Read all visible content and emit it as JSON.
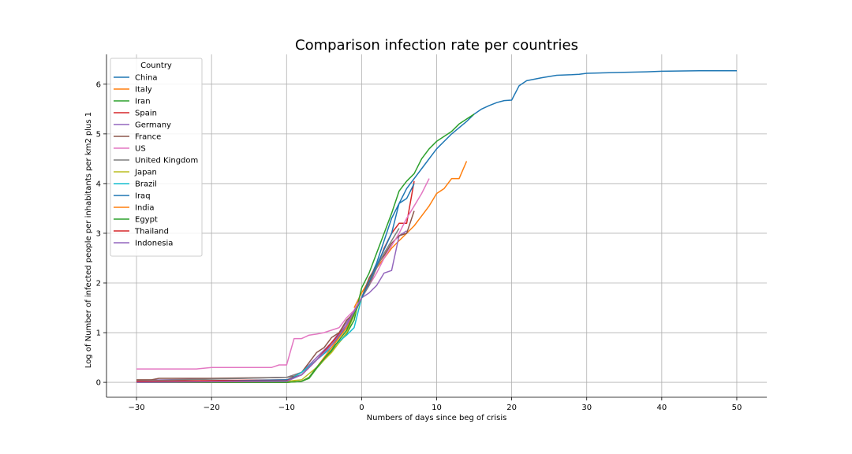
{
  "chart_data": {
    "type": "line",
    "title": "Comparison infection rate per countries",
    "xlabel": "Numbers of days since beg of crisis",
    "ylabel": "Log of Number of infected people per inhabitants per km2 plus 1",
    "xlim": [
      -34,
      54
    ],
    "ylim": [
      -0.3,
      6.6
    ],
    "xticks": [
      -30,
      -20,
      -10,
      0,
      10,
      20,
      30,
      40,
      50
    ],
    "yticks": [
      0,
      1,
      2,
      3,
      4,
      5,
      6
    ],
    "grid": true,
    "legend": {
      "title": "Country",
      "placement": "upper-left"
    },
    "series": [
      {
        "name": "China",
        "color": "#1f77b4",
        "x": [
          0,
          2,
          4,
          6,
          8,
          10,
          12,
          14,
          15,
          16,
          17,
          18,
          19,
          20,
          21,
          22,
          24,
          26,
          28,
          29,
          30,
          33,
          35,
          38,
          40,
          45,
          50
        ],
        "y": [
          1.7,
          2.4,
          3.3,
          3.9,
          4.3,
          4.7,
          5.0,
          5.25,
          5.4,
          5.5,
          5.57,
          5.63,
          5.67,
          5.68,
          5.97,
          6.07,
          6.13,
          6.18,
          6.19,
          6.2,
          6.22,
          6.23,
          6.24,
          6.25,
          6.26,
          6.27,
          6.27
        ]
      },
      {
        "name": "Italy",
        "color": "#ff7f0e",
        "x": [
          -1,
          0,
          1,
          2,
          3,
          4,
          5,
          6,
          7,
          8,
          9,
          10,
          11,
          12,
          13,
          14
        ],
        "y": [
          1.5,
          1.8,
          2.05,
          2.3,
          2.5,
          2.7,
          2.85,
          3.0,
          3.15,
          3.35,
          3.55,
          3.8,
          3.9,
          4.1,
          4.1,
          4.45
        ]
      },
      {
        "name": "Iran",
        "color": "#2ca02c",
        "x": [
          -30,
          -10,
          -8,
          -7,
          -6,
          -5,
          -4,
          -3,
          -2,
          -1,
          0,
          1,
          2,
          3,
          4,
          5,
          6,
          7,
          8,
          9,
          10,
          11,
          12,
          13,
          14,
          15
        ],
        "y": [
          0.0,
          0.0,
          0.02,
          0.08,
          0.28,
          0.45,
          0.62,
          0.8,
          0.98,
          1.25,
          1.9,
          2.2,
          2.6,
          3.0,
          3.4,
          3.85,
          4.05,
          4.2,
          4.5,
          4.7,
          4.85,
          4.95,
          5.05,
          5.2,
          5.3,
          5.4
        ]
      },
      {
        "name": "Spain",
        "color": "#d62728",
        "x": [
          -30,
          -10,
          -8,
          -6,
          -4,
          -2,
          0,
          1,
          2,
          3,
          4,
          5,
          6,
          7
        ],
        "y": [
          0.02,
          0.05,
          0.15,
          0.45,
          0.75,
          1.1,
          1.7,
          2.0,
          2.3,
          2.7,
          3.0,
          3.2,
          3.2,
          4.05
        ]
      },
      {
        "name": "Germany",
        "color": "#9467bd",
        "x": [
          -30,
          -10,
          -8,
          -6,
          -4,
          -2,
          0,
          1,
          2,
          3,
          4,
          5,
          6
        ],
        "y": [
          0.04,
          0.1,
          0.2,
          0.5,
          0.8,
          1.2,
          1.7,
          1.8,
          1.95,
          2.2,
          2.25,
          2.95,
          3.05
        ]
      },
      {
        "name": "France",
        "color": "#8c564b",
        "x": [
          -30,
          -28,
          -27,
          -20,
          -10,
          -9,
          -8,
          -7,
          -6,
          -5,
          -4,
          -3,
          -2,
          -1,
          0,
          1,
          2,
          3,
          4,
          5,
          6,
          7
        ],
        "y": [
          0.05,
          0.05,
          0.08,
          0.08,
          0.1,
          0.12,
          0.2,
          0.4,
          0.6,
          0.7,
          0.9,
          1.0,
          1.25,
          1.4,
          1.7,
          2.1,
          2.35,
          2.55,
          2.8,
          2.95,
          3.0,
          3.45
        ]
      },
      {
        "name": "US",
        "color": "#e377c2",
        "x": [
          -30,
          -22,
          -20,
          -12,
          -11,
          -10,
          -9,
          -8,
          -7,
          -6,
          -5,
          -4,
          -3,
          -2,
          -1,
          0,
          1,
          2,
          3,
          4,
          5,
          6,
          7,
          8,
          9
        ],
        "y": [
          0.27,
          0.27,
          0.3,
          0.3,
          0.35,
          0.35,
          0.88,
          0.88,
          0.95,
          0.97,
          1.0,
          1.05,
          1.1,
          1.3,
          1.45,
          1.7,
          1.95,
          2.2,
          2.5,
          2.75,
          3.0,
          3.3,
          3.55,
          3.8,
          4.1
        ]
      },
      {
        "name": "United Kingdom",
        "color": "#7f7f7f",
        "x": [
          -30,
          -10,
          -8,
          -6,
          -4,
          -2,
          0,
          1,
          2,
          3,
          4,
          5
        ],
        "y": [
          0.03,
          0.1,
          0.2,
          0.45,
          0.8,
          1.1,
          1.7,
          1.95,
          2.3,
          2.6,
          2.85,
          3.1
        ]
      },
      {
        "name": "Japan",
        "color": "#bcbd22",
        "x": [
          -30,
          -10,
          -8,
          -6,
          -4,
          -2,
          0
        ],
        "y": [
          0.02,
          0.02,
          0.05,
          0.3,
          0.6,
          1.0,
          1.7
        ]
      },
      {
        "name": "Brazil",
        "color": "#17becf",
        "x": [
          -30,
          -10,
          -8,
          -6,
          -4,
          -2,
          -1,
          0
        ],
        "y": [
          0.0,
          0.02,
          0.2,
          0.45,
          0.7,
          0.95,
          1.1,
          1.7
        ]
      },
      {
        "name": "Iraq",
        "color": "#1f77b4",
        "x": [
          -30,
          -10,
          -8,
          -6,
          -4,
          -2,
          0,
          2,
          4,
          5,
          6,
          7
        ],
        "y": [
          0.0,
          0.05,
          0.15,
          0.45,
          0.75,
          1.1,
          1.7,
          2.35,
          3.0,
          3.6,
          3.7,
          4.0
        ]
      },
      {
        "name": "India",
        "color": "#ff7f0e",
        "x": [
          -30,
          -10,
          -8,
          -7,
          -6,
          -4,
          -2,
          0
        ],
        "y": [
          0.0,
          0.0,
          0.02,
          0.1,
          0.3,
          0.7,
          1.1,
          1.7
        ]
      },
      {
        "name": "Egypt",
        "color": "#2ca02c",
        "x": [
          -30,
          -10,
          -8,
          -7,
          -6,
          -4,
          -2,
          0
        ],
        "y": [
          0.0,
          0.0,
          0.02,
          0.1,
          0.3,
          0.65,
          1.05,
          1.7
        ]
      },
      {
        "name": "Thailand",
        "color": "#d62728",
        "x": [
          -30,
          -10,
          -8,
          -6,
          -4,
          -2,
          0
        ],
        "y": [
          0.02,
          0.03,
          0.15,
          0.45,
          0.8,
          1.15,
          1.7
        ]
      },
      {
        "name": "Indonesia",
        "color": "#9467bd",
        "x": [
          -30,
          -10,
          -8,
          -6,
          -4,
          -2,
          0
        ],
        "y": [
          0.0,
          0.02,
          0.15,
          0.45,
          0.75,
          1.15,
          1.7
        ]
      }
    ]
  }
}
